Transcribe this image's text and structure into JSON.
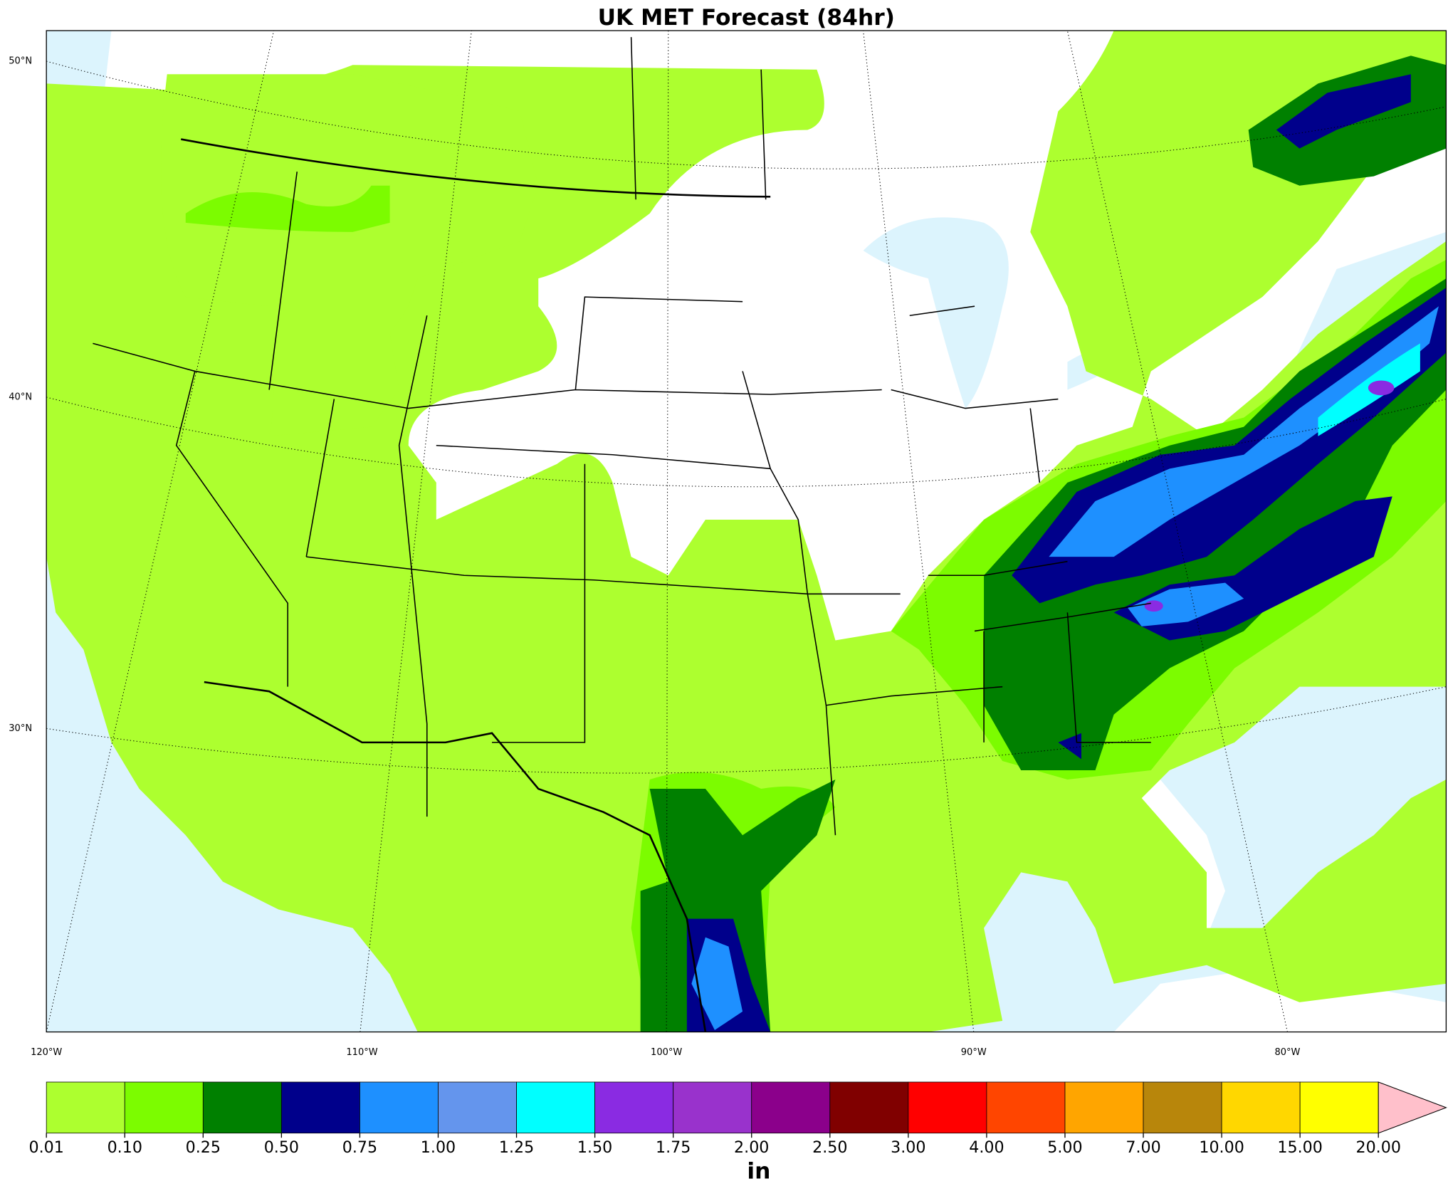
{
  "title": "UK MET Forecast (84hr)",
  "lat_labels": [
    "50°N",
    "40°N",
    "30°N"
  ],
  "lon_labels": [
    "120°W",
    "110°W",
    "100°W",
    "90°W",
    "80°W"
  ],
  "colorbar": {
    "colors": [
      "#adff2f",
      "#7cfc00",
      "#008000",
      "#00008b",
      "#1e90ff",
      "#6495ed",
      "#00ffff",
      "#8a2be2",
      "#9932cc",
      "#8b008b",
      "#800000",
      "#ff0000",
      "#ff4500",
      "#ffa500",
      "#b8860b",
      "#ffd700",
      "#ffff00"
    ],
    "extend_color": "#ffc0cb",
    "ticks": [
      {
        "value": 0.01,
        "label": "0.01"
      },
      {
        "value": 0.1,
        "label": "0.10"
      },
      {
        "value": 0.25,
        "label": "0.25"
      },
      {
        "value": 0.5,
        "label": "0.50"
      },
      {
        "value": 0.75,
        "label": "0.75"
      },
      {
        "value": 1,
        "label": "1.00"
      },
      {
        "value": 1.25,
        "label": "1.25"
      },
      {
        "value": 1.5,
        "label": "1.50"
      },
      {
        "value": 1.75,
        "label": "1.75"
      },
      {
        "value": 2,
        "label": "2.00"
      },
      {
        "value": 2.5,
        "label": "2.50"
      },
      {
        "value": 3,
        "label": "3.00"
      },
      {
        "value": 4,
        "label": "4.00"
      },
      {
        "value": 5,
        "label": "5.00"
      },
      {
        "value": 7,
        "label": "7.00"
      },
      {
        "value": 10,
        "label": "10.00"
      },
      {
        "value": 15,
        "label": "15.00"
      },
      {
        "value": 20,
        "label": "20.00"
      }
    ],
    "unit": "in"
  }
}
